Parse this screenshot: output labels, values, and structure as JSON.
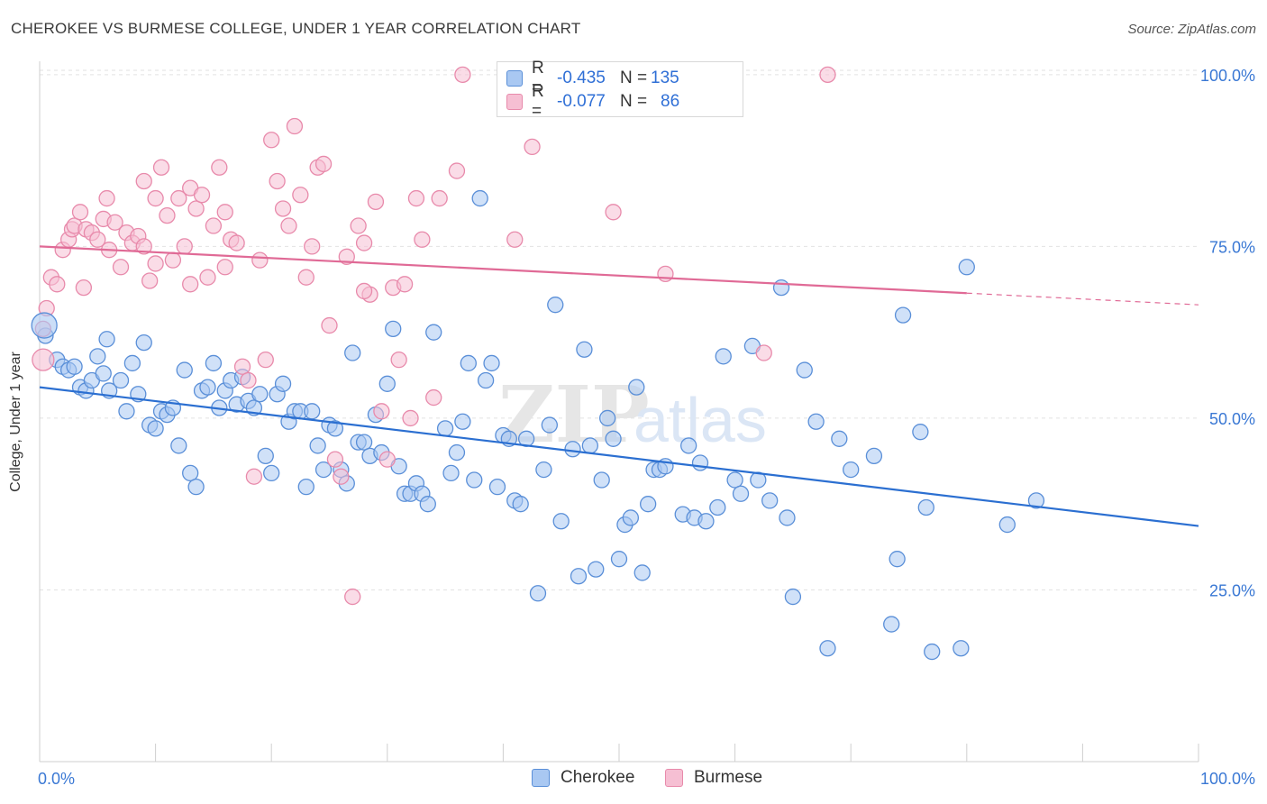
{
  "title": "CHEROKEE VS BURMESE COLLEGE, UNDER 1 YEAR CORRELATION CHART",
  "source": "Source: ZipAtlas.com",
  "colors": {
    "cherokee_fill": "#a9c8f2",
    "cherokee_stroke": "#5a8fd8",
    "cherokee_line": "#2b6fd1",
    "burmese_fill": "#f6bfd3",
    "burmese_stroke": "#e88aab",
    "burmese_line": "#e06a96",
    "tick_text": "#3a78d4",
    "grid": "#e2e2e2"
  },
  "legend_top": {
    "rows": [
      {
        "r_label": "R =",
        "r_value": "-0.435",
        "n_label": "N =",
        "n_value": "135"
      },
      {
        "r_label": "R =",
        "r_value": "-0.077",
        "n_label": "N =",
        "n_value": "86"
      }
    ]
  },
  "legend_bottom": {
    "cherokee": "Cherokee",
    "burmese": "Burmese"
  },
  "chart_data": {
    "type": "scatter",
    "xlabel": "",
    "ylabel": "College, Under 1 year",
    "xlim": [
      0,
      100
    ],
    "ylim": [
      0,
      103
    ],
    "x_tick_labels": [
      "0.0%",
      "100.0%"
    ],
    "y_ticks": [
      25,
      50,
      75,
      100
    ],
    "y_tick_labels": [
      "25.0%",
      "50.0%",
      "75.0%",
      "100.0%"
    ],
    "grid": true,
    "watermark": {
      "zip": "ZIP",
      "atlas": "atlas"
    },
    "series": [
      {
        "name": "Cherokee",
        "r": -0.435,
        "n": 135,
        "trend": {
          "x0": 0,
          "y0": 54.5,
          "x1": 100,
          "y1": 34.3,
          "solid_until": 100
        },
        "points": [
          [
            0.5,
            62.0
          ],
          [
            1.5,
            58.5
          ],
          [
            2.0,
            57.5
          ],
          [
            2.5,
            57.0
          ],
          [
            3.0,
            57.5
          ],
          [
            3.5,
            54.5
          ],
          [
            4.0,
            54.0
          ],
          [
            4.5,
            55.5
          ],
          [
            5.0,
            59.0
          ],
          [
            5.5,
            56.5
          ],
          [
            5.8,
            61.5
          ],
          [
            6.0,
            54.0
          ],
          [
            7.0,
            55.5
          ],
          [
            7.5,
            51.0
          ],
          [
            8.0,
            58.0
          ],
          [
            8.5,
            53.5
          ],
          [
            9.0,
            61.0
          ],
          [
            9.5,
            49.0
          ],
          [
            10.0,
            48.5
          ],
          [
            10.5,
            51.0
          ],
          [
            11.0,
            50.5
          ],
          [
            11.5,
            51.5
          ],
          [
            12.0,
            46.0
          ],
          [
            12.5,
            57.0
          ],
          [
            13.0,
            42.0
          ],
          [
            13.5,
            40.0
          ],
          [
            14.0,
            54.0
          ],
          [
            14.5,
            54.5
          ],
          [
            15.0,
            58.0
          ],
          [
            15.5,
            51.5
          ],
          [
            16.0,
            54.0
          ],
          [
            16.5,
            55.5
          ],
          [
            17.0,
            52.0
          ],
          [
            17.5,
            56.0
          ],
          [
            18.0,
            52.5
          ],
          [
            18.5,
            51.5
          ],
          [
            19.0,
            53.5
          ],
          [
            19.5,
            44.5
          ],
          [
            20.0,
            42.0
          ],
          [
            20.5,
            53.5
          ],
          [
            21.0,
            55.0
          ],
          [
            21.5,
            49.5
          ],
          [
            22.0,
            51.0
          ],
          [
            22.5,
            51.0
          ],
          [
            23.0,
            40.0
          ],
          [
            23.5,
            51.0
          ],
          [
            24.0,
            46.0
          ],
          [
            24.5,
            42.5
          ],
          [
            25.0,
            49.0
          ],
          [
            25.5,
            48.5
          ],
          [
            26.0,
            42.5
          ],
          [
            26.5,
            40.5
          ],
          [
            27.0,
            59.5
          ],
          [
            27.5,
            46.5
          ],
          [
            28.0,
            46.5
          ],
          [
            28.5,
            44.5
          ],
          [
            29.0,
            50.5
          ],
          [
            29.5,
            45.0
          ],
          [
            30.0,
            55.0
          ],
          [
            30.5,
            63.0
          ],
          [
            31.0,
            43.0
          ],
          [
            31.5,
            39.0
          ],
          [
            32.0,
            39.0
          ],
          [
            32.5,
            40.5
          ],
          [
            33.0,
            39.0
          ],
          [
            33.5,
            37.5
          ],
          [
            34.0,
            62.5
          ],
          [
            35.0,
            48.5
          ],
          [
            35.5,
            42.0
          ],
          [
            36.0,
            45.0
          ],
          [
            36.5,
            49.5
          ],
          [
            37.0,
            58.0
          ],
          [
            37.5,
            41.0
          ],
          [
            38.0,
            82.0
          ],
          [
            38.5,
            55.5
          ],
          [
            39.0,
            58.0
          ],
          [
            39.5,
            40.0
          ],
          [
            40.0,
            47.5
          ],
          [
            40.5,
            47.0
          ],
          [
            41.0,
            38.0
          ],
          [
            41.5,
            37.5
          ],
          [
            42.0,
            47.0
          ],
          [
            43.0,
            24.5
          ],
          [
            43.5,
            42.5
          ],
          [
            44.0,
            49.0
          ],
          [
            44.5,
            66.5
          ],
          [
            45.0,
            35.0
          ],
          [
            46.0,
            45.5
          ],
          [
            46.5,
            27.0
          ],
          [
            47.0,
            60.0
          ],
          [
            47.5,
            46.0
          ],
          [
            48.0,
            28.0
          ],
          [
            48.5,
            41.0
          ],
          [
            49.0,
            50.0
          ],
          [
            49.5,
            47.0
          ],
          [
            50.0,
            29.5
          ],
          [
            50.5,
            34.5
          ],
          [
            51.0,
            35.5
          ],
          [
            51.5,
            54.5
          ],
          [
            52.0,
            27.5
          ],
          [
            52.5,
            37.5
          ],
          [
            53.0,
            42.5
          ],
          [
            53.5,
            42.5
          ],
          [
            54.0,
            43.0
          ],
          [
            55.5,
            36.0
          ],
          [
            56.0,
            46.0
          ],
          [
            56.5,
            35.5
          ],
          [
            57.0,
            43.5
          ],
          [
            57.5,
            35.0
          ],
          [
            58.5,
            37.0
          ],
          [
            59.0,
            59.0
          ],
          [
            60.0,
            41.0
          ],
          [
            60.5,
            39.0
          ],
          [
            61.5,
            60.5
          ],
          [
            62.0,
            41.0
          ],
          [
            63.0,
            38.0
          ],
          [
            64.0,
            69.0
          ],
          [
            64.5,
            35.5
          ],
          [
            65.0,
            24.0
          ],
          [
            66.0,
            57.0
          ],
          [
            67.0,
            49.5
          ],
          [
            68.0,
            16.5
          ],
          [
            69.0,
            47.0
          ],
          [
            70.0,
            42.5
          ],
          [
            72.0,
            44.5
          ],
          [
            73.5,
            20.0
          ],
          [
            74.0,
            29.5
          ],
          [
            74.5,
            65.0
          ],
          [
            76.0,
            48.0
          ],
          [
            76.5,
            37.0
          ],
          [
            77.0,
            16.0
          ],
          [
            79.5,
            16.5
          ],
          [
            80.0,
            72.0
          ],
          [
            83.5,
            34.5
          ],
          [
            86.0,
            38.0
          ]
        ]
      },
      {
        "name": "Burmese",
        "r": -0.077,
        "n": 86,
        "trend": {
          "x0": 0,
          "y0": 75.0,
          "x1": 100,
          "y1": 66.5,
          "solid_until": 80
        },
        "points": [
          [
            0.3,
            63.0
          ],
          [
            0.6,
            66.0
          ],
          [
            1.0,
            70.5
          ],
          [
            1.5,
            69.5
          ],
          [
            2.0,
            74.5
          ],
          [
            2.5,
            76.0
          ],
          [
            2.8,
            77.5
          ],
          [
            3.0,
            78.0
          ],
          [
            3.5,
            80.0
          ],
          [
            3.8,
            69.0
          ],
          [
            4.0,
            77.5
          ],
          [
            4.5,
            77.0
          ],
          [
            5.0,
            76.0
          ],
          [
            5.5,
            79.0
          ],
          [
            5.8,
            82.0
          ],
          [
            6.0,
            74.5
          ],
          [
            6.5,
            78.5
          ],
          [
            7.0,
            72.0
          ],
          [
            7.5,
            77.0
          ],
          [
            8.0,
            75.5
          ],
          [
            8.5,
            76.5
          ],
          [
            9.0,
            84.5
          ],
          [
            9.5,
            70.0
          ],
          [
            10.0,
            82.0
          ],
          [
            10.5,
            86.5
          ],
          [
            11.0,
            79.5
          ],
          [
            11.5,
            73.0
          ],
          [
            12.0,
            82.0
          ],
          [
            12.5,
            75.0
          ],
          [
            13.0,
            83.5
          ],
          [
            13.5,
            80.5
          ],
          [
            14.0,
            82.5
          ],
          [
            14.5,
            70.5
          ],
          [
            15.0,
            78.0
          ],
          [
            15.5,
            86.5
          ],
          [
            16.0,
            72.0
          ],
          [
            16.5,
            76.0
          ],
          [
            17.0,
            75.5
          ],
          [
            17.5,
            57.5
          ],
          [
            18.0,
            55.5
          ],
          [
            18.5,
            41.5
          ],
          [
            19.0,
            73.0
          ],
          [
            19.5,
            58.5
          ],
          [
            20.0,
            90.5
          ],
          [
            20.5,
            84.5
          ],
          [
            21.0,
            80.5
          ],
          [
            21.5,
            78.0
          ],
          [
            22.0,
            92.5
          ],
          [
            22.5,
            82.5
          ],
          [
            23.0,
            70.5
          ],
          [
            24.0,
            86.5
          ],
          [
            24.5,
            87.0
          ],
          [
            25.0,
            63.5
          ],
          [
            25.5,
            44.0
          ],
          [
            26.0,
            41.5
          ],
          [
            26.5,
            73.5
          ],
          [
            27.0,
            24.0
          ],
          [
            27.5,
            78.0
          ],
          [
            28.0,
            75.5
          ],
          [
            28.5,
            68.0
          ],
          [
            29.0,
            81.5
          ],
          [
            29.5,
            51.0
          ],
          [
            30.0,
            44.0
          ],
          [
            30.5,
            69.0
          ],
          [
            31.0,
            58.5
          ],
          [
            31.5,
            69.5
          ],
          [
            32.0,
            50.0
          ],
          [
            32.5,
            82.0
          ],
          [
            33.0,
            76.0
          ],
          [
            34.0,
            53.0
          ],
          [
            34.5,
            82.0
          ],
          [
            36.0,
            86.0
          ],
          [
            36.5,
            100.0
          ],
          [
            41.0,
            76.0
          ],
          [
            42.5,
            89.5
          ],
          [
            44.0,
            100.0
          ],
          [
            49.5,
            80.0
          ],
          [
            54.0,
            71.0
          ],
          [
            62.5,
            59.5
          ],
          [
            68.0,
            100.0
          ],
          [
            9.0,
            75.0
          ],
          [
            13.0,
            69.5
          ],
          [
            23.5,
            75.0
          ],
          [
            28.0,
            68.5
          ],
          [
            10.0,
            72.5
          ],
          [
            16.0,
            80.0
          ]
        ]
      }
    ]
  }
}
